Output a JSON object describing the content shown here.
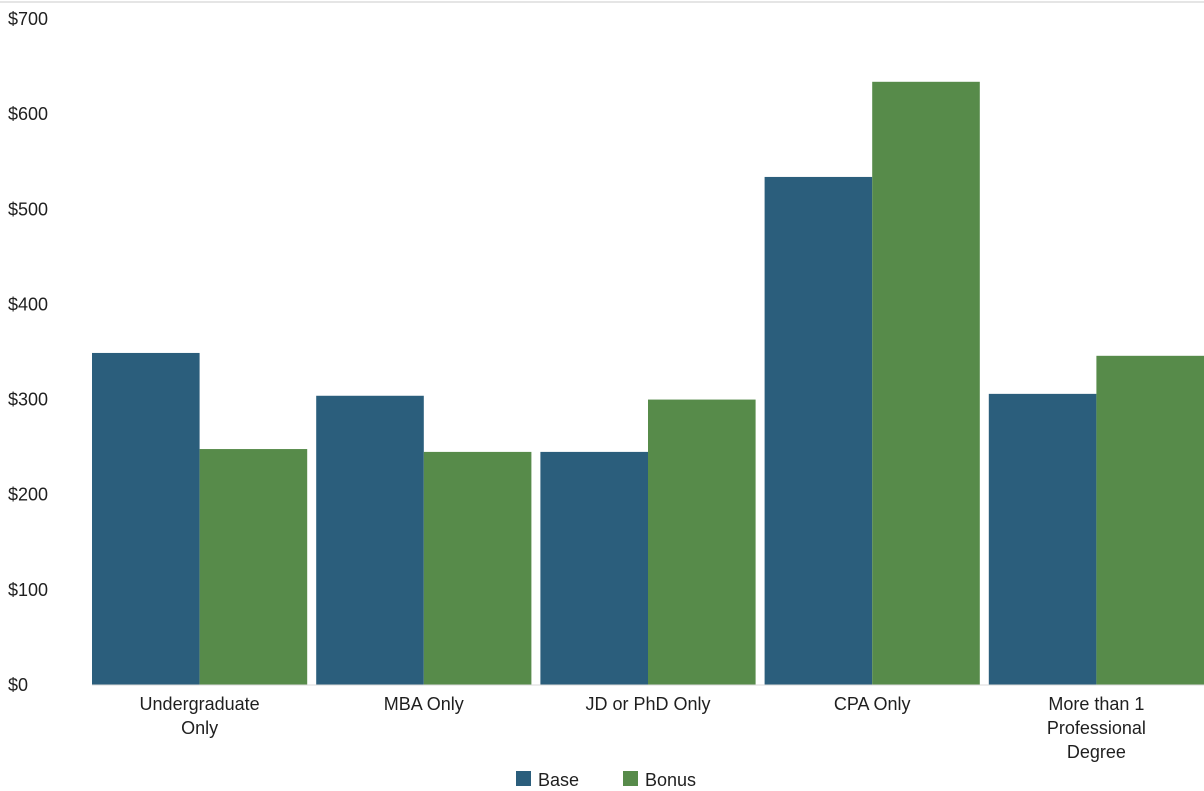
{
  "chart_data": {
    "type": "bar",
    "categories": [
      [
        "Undergraduate",
        "Only"
      ],
      [
        "MBA Only"
      ],
      [
        "JD or PhD Only"
      ],
      [
        "CPA Only"
      ],
      [
        "More than 1",
        "Professional",
        "Degree"
      ]
    ],
    "series": [
      {
        "name": "Base",
        "color": "#2b5e7c",
        "values": [
          349,
          304,
          245,
          534,
          306
        ]
      },
      {
        "name": "Bonus",
        "color": "#578b4a",
        "values": [
          248,
          245,
          300,
          634,
          346
        ]
      }
    ],
    "yticks": [
      "$0",
      "$100",
      "$200",
      "$300",
      "$400",
      "$500",
      "$600",
      "$700"
    ],
    "ylim": [
      0,
      700
    ],
    "grid": false,
    "legend_position": "bottom-center"
  }
}
